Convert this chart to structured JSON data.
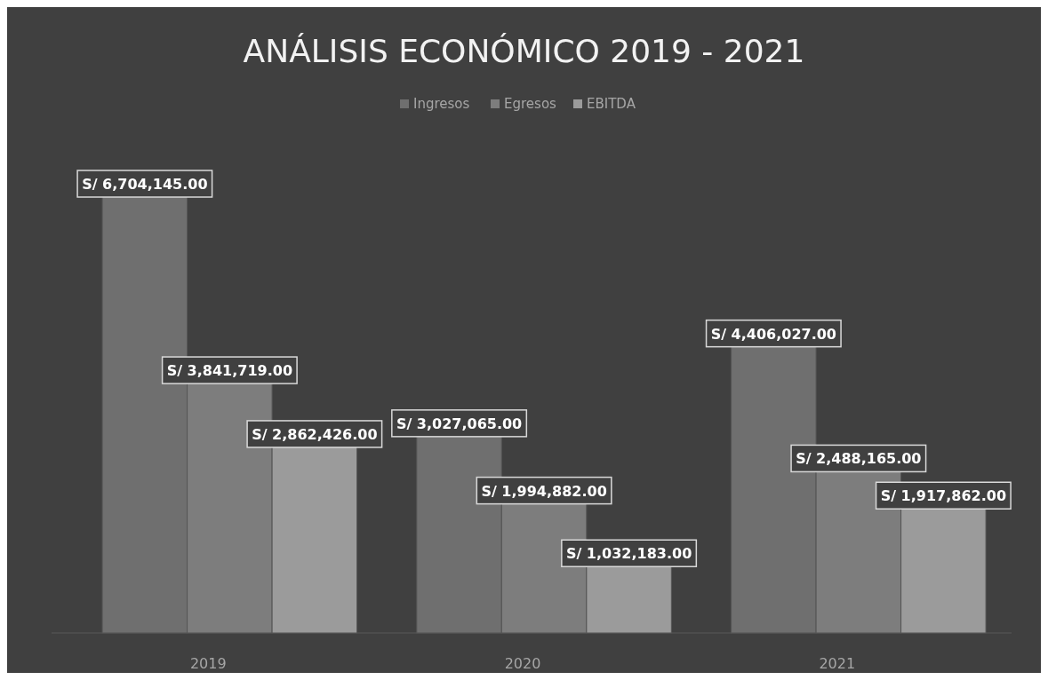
{
  "chart_data": {
    "type": "bar",
    "title": "ANÁLISIS ECONÓMICO 2019 - 2021",
    "categories": [
      "2019",
      "2020",
      "2021"
    ],
    "series": [
      {
        "name": "Ingresos",
        "color": "#6f6f6f",
        "values": [
          6704145,
          3027065,
          4406027
        ],
        "value_labels": [
          "S/ 6,704,145.00",
          "S/ 3,027,065.00",
          "S/ 4,406,027.00"
        ]
      },
      {
        "name": "Egresos",
        "color": "#7d7d7d",
        "values": [
          3841719,
          1994882,
          2488165
        ],
        "value_labels": [
          "S/ 3,841,719.00",
          "S/ 1,994,882.00",
          "S/ 2,488,165.00"
        ]
      },
      {
        "name": "EBITDA",
        "color": "#9b9b9b",
        "values": [
          2862426,
          1032183,
          1917862
        ],
        "value_labels": [
          "S/ 2,862,426.00",
          "S/ 1,032,183.00",
          "S/ 1,917,862.00"
        ]
      }
    ],
    "legend": "top"
  }
}
